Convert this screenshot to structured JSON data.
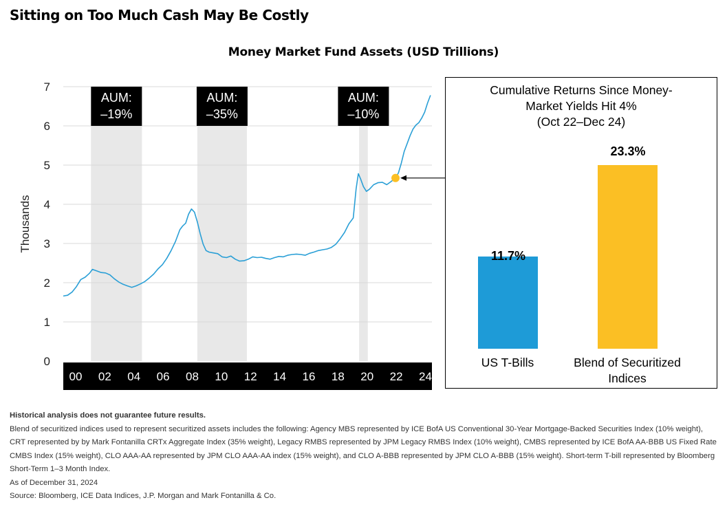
{
  "page_title": "Sitting on Too Much Cash May Be Costly",
  "chart_data": [
    {
      "type": "line",
      "title": "Money Market Fund Assets (USD Trillions)",
      "ylabel": "Thousands",
      "ylim": [
        0,
        7
      ],
      "yticks": [
        "0",
        "1",
        "2",
        "3",
        "4",
        "5",
        "6",
        "7"
      ],
      "xlim": [
        2000,
        2025.3
      ],
      "xticks": [
        {
          "label": "00",
          "x": 2000
        },
        {
          "label": "02",
          "x": 2002
        },
        {
          "label": "04",
          "x": 2004
        },
        {
          "label": "06",
          "x": 2006
        },
        {
          "label": "08",
          "x": 2008
        },
        {
          "label": "10",
          "x": 2010
        },
        {
          "label": "12",
          "x": 2012
        },
        {
          "label": "14",
          "x": 2014
        },
        {
          "label": "16",
          "x": 2016
        },
        {
          "label": "18",
          "x": 2018
        },
        {
          "label": "20",
          "x": 2020
        },
        {
          "label": "22",
          "x": 2022
        },
        {
          "label": "24",
          "x": 2024
        }
      ],
      "line_color": "#2a9fd6",
      "shading_color": "#e8e8e8",
      "shaded_periods": [
        {
          "start": 2001.9,
          "end": 2005.4,
          "label_line1": "AUM:",
          "label_line2": "–19%"
        },
        {
          "start": 2009.2,
          "end": 2012.6,
          "label_line1": "AUM:",
          "label_line2": "–35%"
        },
        {
          "start": 2020.3,
          "end": 2020.9,
          "label_line1": "AUM:",
          "label_line2": "–10%"
        }
      ],
      "marker": {
        "x": 2022.8,
        "y": 4.67,
        "color": "#fbbf24"
      },
      "x": [
        2000.0,
        2000.3,
        2000.6,
        2000.9,
        2001.2,
        2001.5,
        2001.8,
        2002.0,
        2002.3,
        2002.6,
        2002.9,
        2003.2,
        2003.5,
        2003.8,
        2004.1,
        2004.4,
        2004.7,
        2005.0,
        2005.3,
        2005.6,
        2005.9,
        2006.2,
        2006.5,
        2006.8,
        2007.1,
        2007.4,
        2007.7,
        2008.0,
        2008.2,
        2008.4,
        2008.6,
        2008.8,
        2009.0,
        2009.2,
        2009.4,
        2009.6,
        2009.8,
        2010.0,
        2010.3,
        2010.6,
        2010.9,
        2011.2,
        2011.5,
        2011.8,
        2012.1,
        2012.4,
        2012.7,
        2013.0,
        2013.3,
        2013.6,
        2013.9,
        2014.2,
        2014.5,
        2014.8,
        2015.1,
        2015.4,
        2015.7,
        2016.0,
        2016.3,
        2016.6,
        2016.9,
        2017.2,
        2017.5,
        2017.8,
        2018.1,
        2018.4,
        2018.7,
        2019.0,
        2019.3,
        2019.6,
        2019.9,
        2020.1,
        2020.25,
        2020.4,
        2020.6,
        2020.8,
        2021.0,
        2021.3,
        2021.6,
        2021.9,
        2022.2,
        2022.5,
        2022.8,
        2023.0,
        2023.2,
        2023.4,
        2023.6,
        2023.8,
        2024.0,
        2024.2,
        2024.4,
        2024.6,
        2024.8,
        2025.0,
        2025.2
      ],
      "y": [
        1.66,
        1.68,
        1.76,
        1.9,
        2.08,
        2.14,
        2.24,
        2.34,
        2.3,
        2.26,
        2.25,
        2.2,
        2.1,
        2.02,
        1.96,
        1.92,
        1.88,
        1.92,
        1.97,
        2.03,
        2.12,
        2.22,
        2.35,
        2.46,
        2.62,
        2.82,
        3.05,
        3.35,
        3.45,
        3.52,
        3.75,
        3.88,
        3.8,
        3.55,
        3.25,
        2.98,
        2.82,
        2.78,
        2.76,
        2.74,
        2.66,
        2.64,
        2.68,
        2.6,
        2.55,
        2.56,
        2.6,
        2.66,
        2.64,
        2.65,
        2.62,
        2.6,
        2.64,
        2.67,
        2.66,
        2.7,
        2.72,
        2.73,
        2.72,
        2.7,
        2.75,
        2.78,
        2.82,
        2.84,
        2.86,
        2.9,
        2.98,
        3.12,
        3.28,
        3.5,
        3.65,
        4.4,
        4.78,
        4.65,
        4.45,
        4.33,
        4.38,
        4.5,
        4.55,
        4.56,
        4.5,
        4.58,
        4.67,
        4.8,
        5.05,
        5.35,
        5.55,
        5.75,
        5.92,
        6.02,
        6.08,
        6.2,
        6.35,
        6.58,
        6.78
      ]
    },
    {
      "type": "bar",
      "title_lines": [
        "Cumulative Returns Since Money-",
        "Market Yields Hit 4%",
        "(Oct 22–Dec 24)"
      ],
      "categories_lines": [
        [
          "US T-Bills"
        ],
        [
          "Blend of Securitized",
          "Indices"
        ]
      ],
      "values": [
        11.7,
        23.3
      ],
      "value_labels": [
        "11.7%",
        "23.3%"
      ],
      "colors": [
        "#1e9bd7",
        "#fbbf24"
      ],
      "ylim": [
        0,
        23.3
      ]
    }
  ],
  "notes": {
    "disclaimer": "Historical analysis does not guarantee future results.",
    "blend": "Blend of securitized indices used to represent securitized assets includes the following: Agency MBS represented by ICE BofA US Conventional 30-Year Mortgage-Backed Securities Index (10% weight), CRT represented by by Mark Fontanilla CRTx Aggregate Index (35% weight), Legacy RMBS represented by JPM Legacy RMBS Index (10% weight), CMBS represented by ICE BofA AA-BBB US Fixed Rate CMBS Index (15% weight), CLO AAA-AA represented by JPM CLO AAA-AA index (15% weight), and CLO A-BBB represented by JPM CLO A-BBB (15% weight). Short-term T-bill represented by Bloomberg Short-Term 1–3 Month Index.",
    "as_of": "As of December 31, 2024",
    "source": "Source: Bloomberg, ICE Data Indices, J.P. Morgan and Mark Fontanilla & Co."
  }
}
